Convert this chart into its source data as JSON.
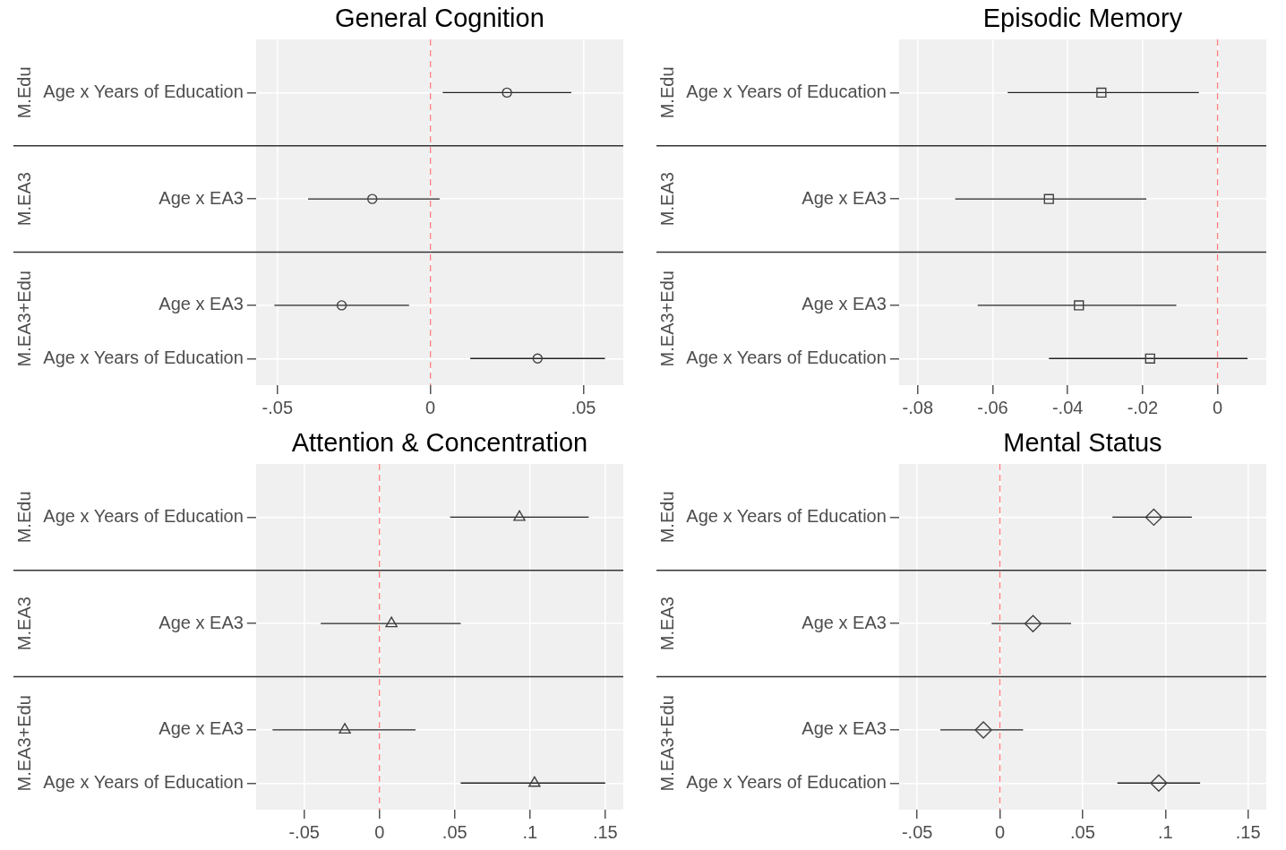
{
  "chart_data": [
    {
      "type": "scatter",
      "orientation": "horizontal",
      "title": "General Cognition",
      "categories": [
        "Age x Years of Education",
        null,
        "Age x EA3",
        null,
        "Age x EA3",
        "Age x Years of Education"
      ],
      "values": [
        0.025,
        null,
        -0.019,
        null,
        -0.029,
        0.035
      ],
      "errors": [
        [
          0.004,
          0.046
        ],
        null,
        [
          -0.04,
          0.003
        ],
        null,
        [
          -0.051,
          -0.007
        ],
        [
          0.013,
          0.057
        ]
      ],
      "color": "#404040",
      "marker": "circle",
      "xlim": [
        -0.057,
        0.063
      ],
      "xticks": [
        {
          "value": -0.05,
          "label": "-.05"
        },
        {
          "value": 0,
          "label": "0"
        },
        {
          "value": 0.05,
          "label": ".05"
        }
      ],
      "ref_lines": [
        {
          "axis": "x",
          "value": 0,
          "color": "#ff7f7f",
          "line_style": "dashed"
        }
      ],
      "annotations": [
        "M.Edu",
        "M.EA3",
        "M.EA3+Edu"
      ],
      "grid": true,
      "legend": false
    },
    {
      "type": "scatter",
      "orientation": "horizontal",
      "title": "Episodic Memory",
      "categories": [
        "Age x Years of Education",
        null,
        "Age x EA3",
        null,
        "Age x EA3",
        "Age x Years of Education"
      ],
      "values": [
        -0.031,
        null,
        -0.045,
        null,
        -0.037,
        -0.018
      ],
      "errors": [
        [
          -0.056,
          -0.005
        ],
        null,
        [
          -0.07,
          -0.019
        ],
        null,
        [
          -0.064,
          -0.011
        ],
        [
          -0.045,
          0.008
        ]
      ],
      "color": "#404040",
      "marker": "square",
      "xlim": [
        -0.085,
        0.013
      ],
      "xticks": [
        {
          "value": -0.08,
          "label": "-.08"
        },
        {
          "value": -0.06,
          "label": "-.06"
        },
        {
          "value": -0.04,
          "label": "-.04"
        },
        {
          "value": -0.02,
          "label": "-.02"
        },
        {
          "value": 0,
          "label": "0"
        }
      ],
      "ref_lines": [
        {
          "axis": "x",
          "value": 0,
          "color": "#ff7f7f",
          "line_style": "dashed"
        }
      ],
      "annotations": [
        "M.Edu",
        "M.EA3",
        "M.EA3+Edu"
      ],
      "grid": true,
      "legend": false
    },
    {
      "type": "scatter",
      "orientation": "horizontal",
      "title": "Attention & Concentration",
      "categories": [
        "Age x Years of Education",
        null,
        "Age x EA3",
        null,
        "Age x EA3",
        "Age x Years of Education"
      ],
      "values": [
        0.093,
        null,
        0.008,
        null,
        -0.023,
        0.103
      ],
      "errors": [
        [
          0.047,
          0.139
        ],
        null,
        [
          -0.039,
          0.054
        ],
        null,
        [
          -0.071,
          0.024
        ],
        [
          0.054,
          0.15
        ]
      ],
      "color": "#404040",
      "marker": "triangle",
      "xlim": [
        -0.082,
        0.162
      ],
      "xticks": [
        {
          "value": -0.05,
          "label": "-.05"
        },
        {
          "value": 0,
          "label": "0"
        },
        {
          "value": 0.05,
          "label": ".05"
        },
        {
          "value": 0.1,
          "label": ".1"
        },
        {
          "value": 0.15,
          "label": ".15"
        }
      ],
      "ref_lines": [
        {
          "axis": "x",
          "value": 0,
          "color": "#ff7f7f",
          "line_style": "dashed"
        }
      ],
      "annotations": [
        "M.Edu",
        "M.EA3",
        "M.EA3+Edu"
      ],
      "grid": true,
      "legend": false
    },
    {
      "type": "scatter",
      "orientation": "horizontal",
      "title": "Mental Status",
      "categories": [
        "Age x Years of Education",
        null,
        "Age x EA3",
        null,
        "Age x EA3",
        "Age x Years of Education"
      ],
      "values": [
        0.093,
        null,
        0.02,
        null,
        -0.01,
        0.096
      ],
      "errors": [
        [
          0.068,
          0.116
        ],
        null,
        [
          -0.005,
          0.043
        ],
        null,
        [
          -0.036,
          0.014
        ],
        [
          0.071,
          0.121
        ]
      ],
      "color": "#404040",
      "marker": "diamond",
      "xlim": [
        -0.061,
        0.161
      ],
      "xticks": [
        {
          "value": -0.05,
          "label": "-.05"
        },
        {
          "value": 0,
          "label": "0"
        },
        {
          "value": 0.05,
          "label": ".05"
        },
        {
          "value": 0.1,
          "label": ".1"
        },
        {
          "value": 0.15,
          "label": ".15"
        }
      ],
      "ref_lines": [
        {
          "axis": "x",
          "value": 0,
          "color": "#ff7f7f",
          "line_style": "dashed"
        }
      ],
      "annotations": [
        "M.Edu",
        "M.EA3",
        "M.EA3+Edu"
      ],
      "grid": true,
      "legend": false
    }
  ]
}
